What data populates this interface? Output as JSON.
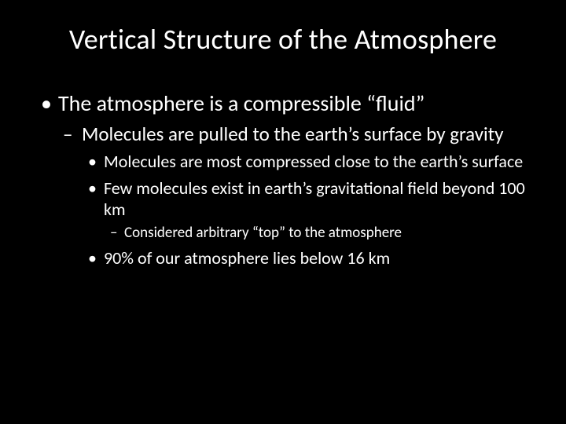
{
  "slide": {
    "background_color": "#000000",
    "text_color": "#ffffff",
    "font_family": "Calibri",
    "title": {
      "text": "Vertical Structure of the Atmosphere",
      "font_size_pt": 36,
      "font_weight": 400,
      "align": "center"
    },
    "bullets": {
      "lvl1": [
        {
          "text": "The atmosphere is a compressible “fluid”",
          "font_size_pt": 28,
          "marker": "•",
          "children": {
            "lvl2": [
              {
                "text": "Molecules are pulled to the earth’s surface by gravity",
                "font_size_pt": 25,
                "marker": "–",
                "children": {
                  "lvl3": [
                    {
                      "text": "Molecules are most compressed close to the earth’s surface",
                      "font_size_pt": 22,
                      "marker": "•"
                    },
                    {
                      "text": "Few molecules exist in earth’s gravitational field beyond 100 km",
                      "font_size_pt": 22,
                      "marker": "•",
                      "children": {
                        "lvl4": [
                          {
                            "text": "Considered arbitrary “top” to the atmosphere",
                            "font_size_pt": 19,
                            "marker": "–"
                          }
                        ]
                      }
                    },
                    {
                      "text": "90% of our atmosphere lies below 16 km",
                      "font_size_pt": 22,
                      "marker": "•"
                    }
                  ]
                }
              }
            ]
          }
        }
      ]
    }
  }
}
